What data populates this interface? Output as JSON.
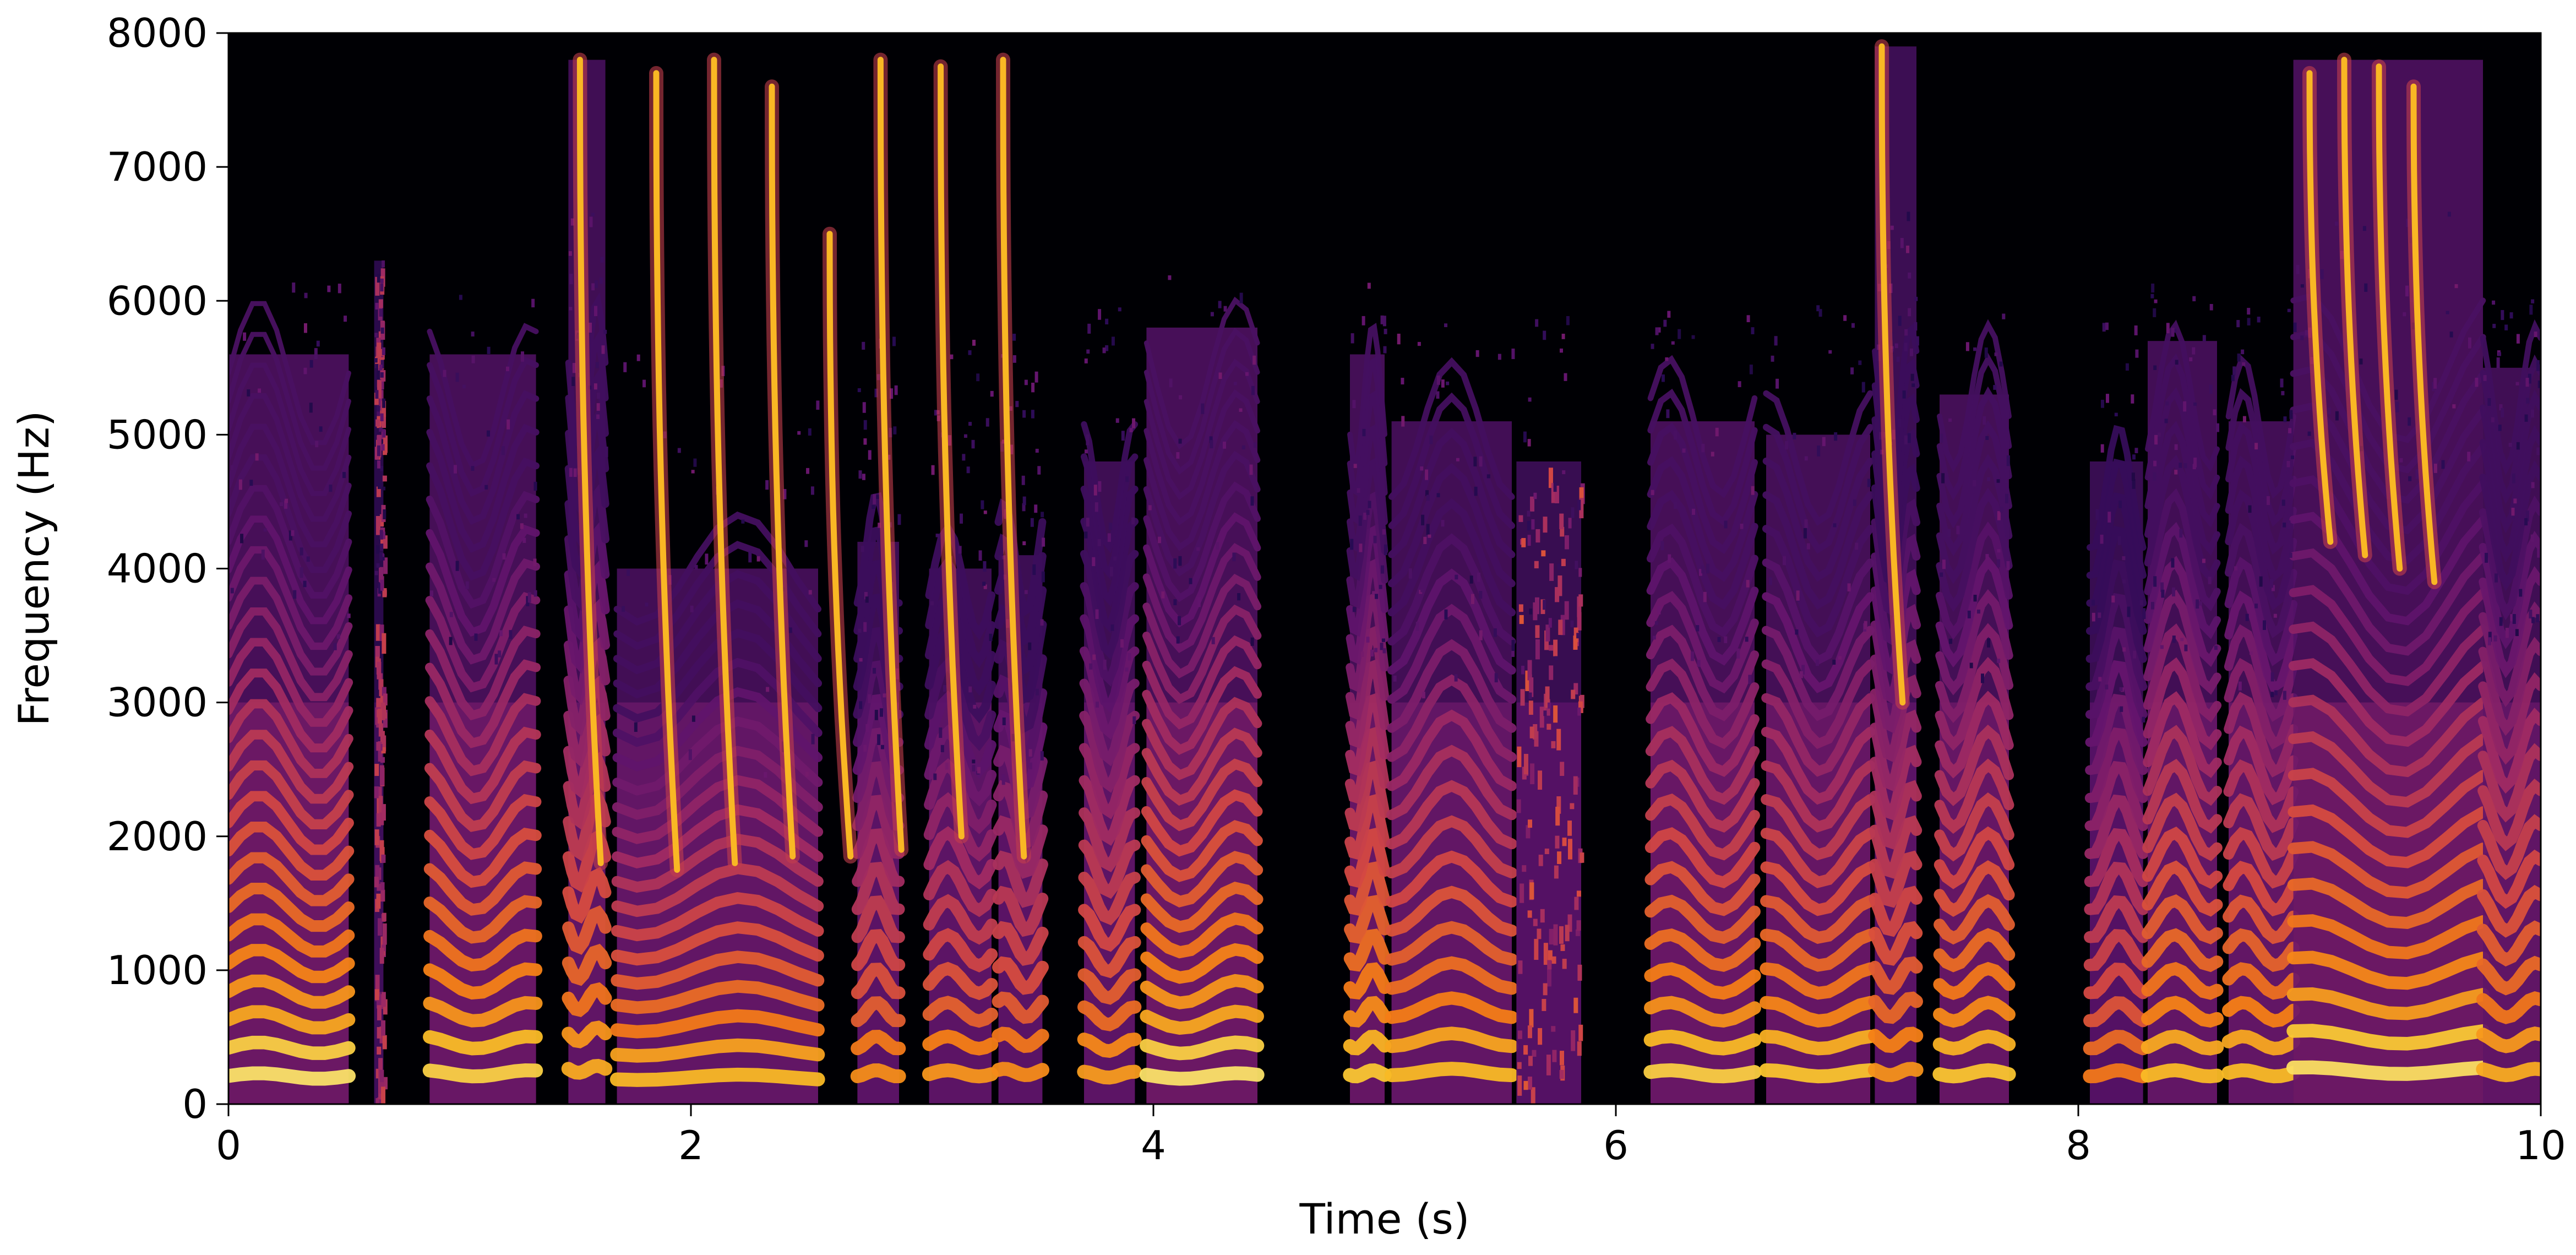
{
  "chart_data": {
    "type": "heatmap",
    "title": "",
    "xlabel": "Time (s)",
    "ylabel": "Frequency (Hz)",
    "xlim": [
      0,
      10
    ],
    "ylim": [
      0,
      8000
    ],
    "x_ticks": [
      0,
      2,
      4,
      6,
      8,
      10
    ],
    "x_tick_labels": [
      "0",
      "2",
      "4",
      "6",
      "8",
      "10"
    ],
    "y_ticks": [
      0,
      1000,
      2000,
      3000,
      4000,
      5000,
      6000,
      7000,
      8000
    ],
    "y_tick_labels": [
      "0",
      "1000",
      "2000",
      "3000",
      "4000",
      "5000",
      "6000",
      "7000",
      "8000"
    ],
    "colormap": "inferno",
    "background_color": "#000004",
    "grid": false,
    "legend": "none",
    "segments": [
      {
        "start": 0.0,
        "end": 0.52,
        "f0": 210,
        "top": 5600,
        "intensity": 0.95
      },
      {
        "start": 0.63,
        "end": 0.67,
        "f0": 0,
        "top": 6300,
        "intensity": 0.55
      },
      {
        "start": 0.87,
        "end": 1.33,
        "f0": 230,
        "top": 5600,
        "intensity": 0.92
      },
      {
        "start": 1.47,
        "end": 1.63,
        "f0": 260,
        "top": 7800,
        "intensity": 0.85
      },
      {
        "start": 1.68,
        "end": 2.55,
        "f0": 200,
        "top": 4000,
        "intensity": 0.88
      },
      {
        "start": 2.72,
        "end": 2.9,
        "f0": 230,
        "top": 4200,
        "intensity": 0.8
      },
      {
        "start": 3.03,
        "end": 3.3,
        "f0": 230,
        "top": 4000,
        "intensity": 0.82
      },
      {
        "start": 3.33,
        "end": 3.52,
        "f0": 240,
        "top": 4100,
        "intensity": 0.8
      },
      {
        "start": 3.7,
        "end": 3.92,
        "f0": 220,
        "top": 4800,
        "intensity": 0.82
      },
      {
        "start": 3.97,
        "end": 4.45,
        "f0": 210,
        "top": 5800,
        "intensity": 0.95
      },
      {
        "start": 4.85,
        "end": 5.0,
        "f0": 230,
        "top": 5600,
        "intensity": 0.9
      },
      {
        "start": 5.03,
        "end": 5.55,
        "f0": 240,
        "top": 5100,
        "intensity": 0.88
      },
      {
        "start": 5.57,
        "end": 5.85,
        "f0": 0,
        "top": 4800,
        "intensity": 0.75
      },
      {
        "start": 6.15,
        "end": 6.6,
        "f0": 230,
        "top": 5100,
        "intensity": 0.92
      },
      {
        "start": 6.65,
        "end": 7.1,
        "f0": 230,
        "top": 5000,
        "intensity": 0.9
      },
      {
        "start": 7.12,
        "end": 7.3,
        "f0": 240,
        "top": 7900,
        "intensity": 0.8
      },
      {
        "start": 7.4,
        "end": 7.7,
        "f0": 230,
        "top": 5300,
        "intensity": 0.9
      },
      {
        "start": 8.05,
        "end": 8.28,
        "f0": 230,
        "top": 4800,
        "intensity": 0.75
      },
      {
        "start": 8.3,
        "end": 8.6,
        "f0": 230,
        "top": 5700,
        "intensity": 0.88
      },
      {
        "start": 8.65,
        "end": 8.93,
        "f0": 230,
        "top": 5100,
        "intensity": 0.88
      },
      {
        "start": 8.93,
        "end": 9.75,
        "f0": 250,
        "top": 7800,
        "intensity": 0.95
      },
      {
        "start": 9.75,
        "end": 10.0,
        "f0": 240,
        "top": 5500,
        "intensity": 0.85
      }
    ],
    "sweeps": [
      {
        "t": 1.52,
        "high": 7800,
        "low": 1800
      },
      {
        "t": 1.85,
        "high": 7700,
        "low": 1750
      },
      {
        "t": 2.1,
        "high": 7800,
        "low": 1800
      },
      {
        "t": 2.35,
        "high": 7600,
        "low": 1850
      },
      {
        "t": 2.6,
        "high": 6500,
        "low": 1850
      },
      {
        "t": 2.82,
        "high": 7800,
        "low": 1900
      },
      {
        "t": 3.08,
        "high": 7750,
        "low": 2000
      },
      {
        "t": 3.35,
        "high": 7800,
        "low": 1850
      },
      {
        "t": 7.15,
        "high": 7900,
        "low": 3000
      },
      {
        "t": 9.0,
        "high": 7700,
        "low": 4200
      },
      {
        "t": 9.15,
        "high": 7800,
        "low": 4100
      },
      {
        "t": 9.3,
        "high": 7750,
        "low": 4000
      },
      {
        "t": 9.45,
        "high": 7600,
        "low": 3900
      }
    ]
  }
}
